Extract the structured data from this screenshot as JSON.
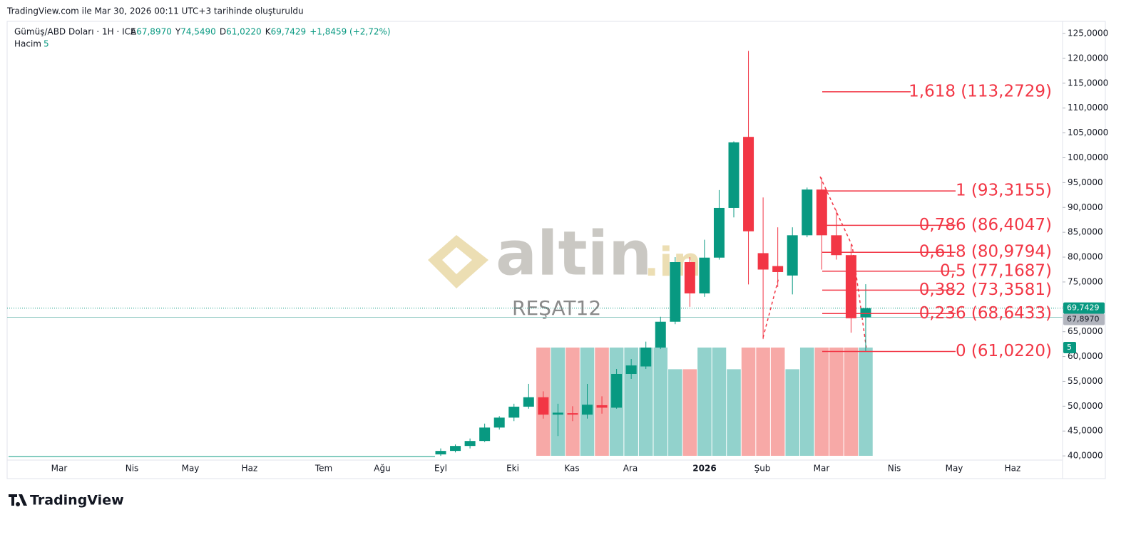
{
  "header": "TradingView.com ile Mar 30, 2026 00:11 UTC+3 tarihinde oluşturuldu",
  "brand": "TradingView",
  "watermark": {
    "logo": "altin",
    "suffix": ".in",
    "user": "REŞAT12"
  },
  "chart_data": {
    "type": "candlestick",
    "symbol": "Gümüş/ABD Doları · 1H · ICE",
    "ohlc_legend": [
      {
        "key": "A",
        "value": "67,8970"
      },
      {
        "key": "Y",
        "value": "74,5490"
      },
      {
        "key": "D",
        "value": "61,0220"
      },
      {
        "key": "K",
        "value": "69,7429"
      },
      {
        "key": "",
        "value": "+1,8459 (+2,72%)"
      }
    ],
    "volume_label": "Hacim",
    "up_color": "#089981",
    "down_color": "#f23645",
    "volume_up_color": "#92d2cc",
    "volume_down_color": "#f7a9a7",
    "open": [
      40.3,
      41.0,
      42.0,
      43.0,
      45.7,
      47.7,
      49.9,
      51.8,
      48.3,
      48.6,
      48.3,
      50.2,
      49.7,
      56.5,
      58.0,
      61.8,
      67.0,
      79.0,
      72.7,
      79.9,
      89.9,
      104.2,
      80.8,
      78.2,
      76.3,
      84.4,
      93.6,
      84.4,
      80.4,
      67.897
    ],
    "high": [
      41.5,
      42.3,
      43.5,
      46.5,
      48.0,
      50.5,
      54.5,
      53.0,
      50.5,
      50.0,
      54.5,
      52.0,
      57.5,
      59.5,
      63.0,
      68.0,
      80.0,
      80.0,
      83.5,
      93.5,
      103.3,
      121.5,
      92.0,
      86.0,
      86.0,
      94.0,
      96.0,
      89.5,
      82.5,
      74.549
    ],
    "low": [
      40.0,
      40.7,
      41.5,
      42.8,
      45.3,
      47.0,
      49.5,
      47.5,
      44.0,
      47.0,
      47.5,
      48.5,
      49.5,
      55.5,
      57.5,
      61.5,
      66.5,
      70.0,
      72.0,
      79.5,
      88.0,
      74.5,
      63.5,
      74.0,
      72.5,
      84.0,
      77.5,
      79.5,
      64.8,
      61.022
    ],
    "close": [
      41.0,
      42.0,
      43.0,
      45.7,
      47.7,
      49.9,
      51.8,
      48.3,
      48.7,
      48.3,
      50.3,
      49.7,
      56.5,
      58.2,
      61.8,
      67.0,
      79.0,
      72.7,
      79.9,
      89.9,
      103.1,
      85.2,
      77.5,
      77.0,
      84.4,
      93.6,
      84.4,
      80.4,
      67.7,
      69.7429
    ],
    "volume": [
      null,
      null,
      null,
      null,
      null,
      null,
      null,
      5,
      5,
      5,
      5,
      5,
      5,
      5,
      5,
      5,
      4,
      4,
      5,
      5,
      4,
      5,
      5,
      5,
      4,
      5,
      5,
      5,
      5,
      5
    ],
    "ylim": [
      39.3,
      126.3
    ],
    "yticks": [
      {
        "value": 40,
        "label": "40,0000"
      },
      {
        "value": 45,
        "label": "45,0000"
      },
      {
        "value": 50,
        "label": "50,0000"
      },
      {
        "value": 55,
        "label": "55,0000"
      },
      {
        "value": 60,
        "label": "60,0000"
      },
      {
        "value": 65,
        "label": "65,0000"
      },
      {
        "value": 70,
        "label": "70,0000"
      },
      {
        "value": 75,
        "label": "75,0000"
      },
      {
        "value": 80,
        "label": "80,0000"
      },
      {
        "value": 85,
        "label": "85,0000"
      },
      {
        "value": 90,
        "label": "90,0000"
      },
      {
        "value": 95,
        "label": "95,0000"
      },
      {
        "value": 100,
        "label": "100,0000"
      },
      {
        "value": 105,
        "label": "105,0000"
      },
      {
        "value": 110,
        "label": "110,0000"
      },
      {
        "value": 115,
        "label": "115,0000"
      },
      {
        "value": 120,
        "label": "120,0000"
      },
      {
        "value": 125,
        "label": "125,0000"
      }
    ],
    "x_labels": [
      "Mar",
      "Nis",
      "May",
      "Haz",
      "Tem",
      "Ağu",
      "Eyl",
      "Eki",
      "Kas",
      "Ara",
      "2026",
      "Şub",
      "Mar",
      "Nis",
      "May",
      "Haz"
    ],
    "fib_levels": [
      {
        "value": 113.2729,
        "label": "1,618 (113,2729)"
      },
      {
        "value": 93.3155,
        "label": "1 (93,3155)"
      },
      {
        "value": 86.4047,
        "label": "0,786 (86,4047)"
      },
      {
        "value": 80.9794,
        "label": "0,618 (80,9794)"
      },
      {
        "value": 77.1687,
        "label": "0,5 (77,1687)"
      },
      {
        "value": 73.3581,
        "label": "0,382 (73,3581)"
      },
      {
        "value": 68.6433,
        "label": "0,236 (68,6433)"
      },
      {
        "value": 61.022,
        "label": "0 (61,0220)"
      }
    ],
    "price_markers": [
      {
        "value": 69.7429,
        "label": "69,7429"
      },
      {
        "value": 67.897,
        "label": "67,8970"
      }
    ]
  }
}
